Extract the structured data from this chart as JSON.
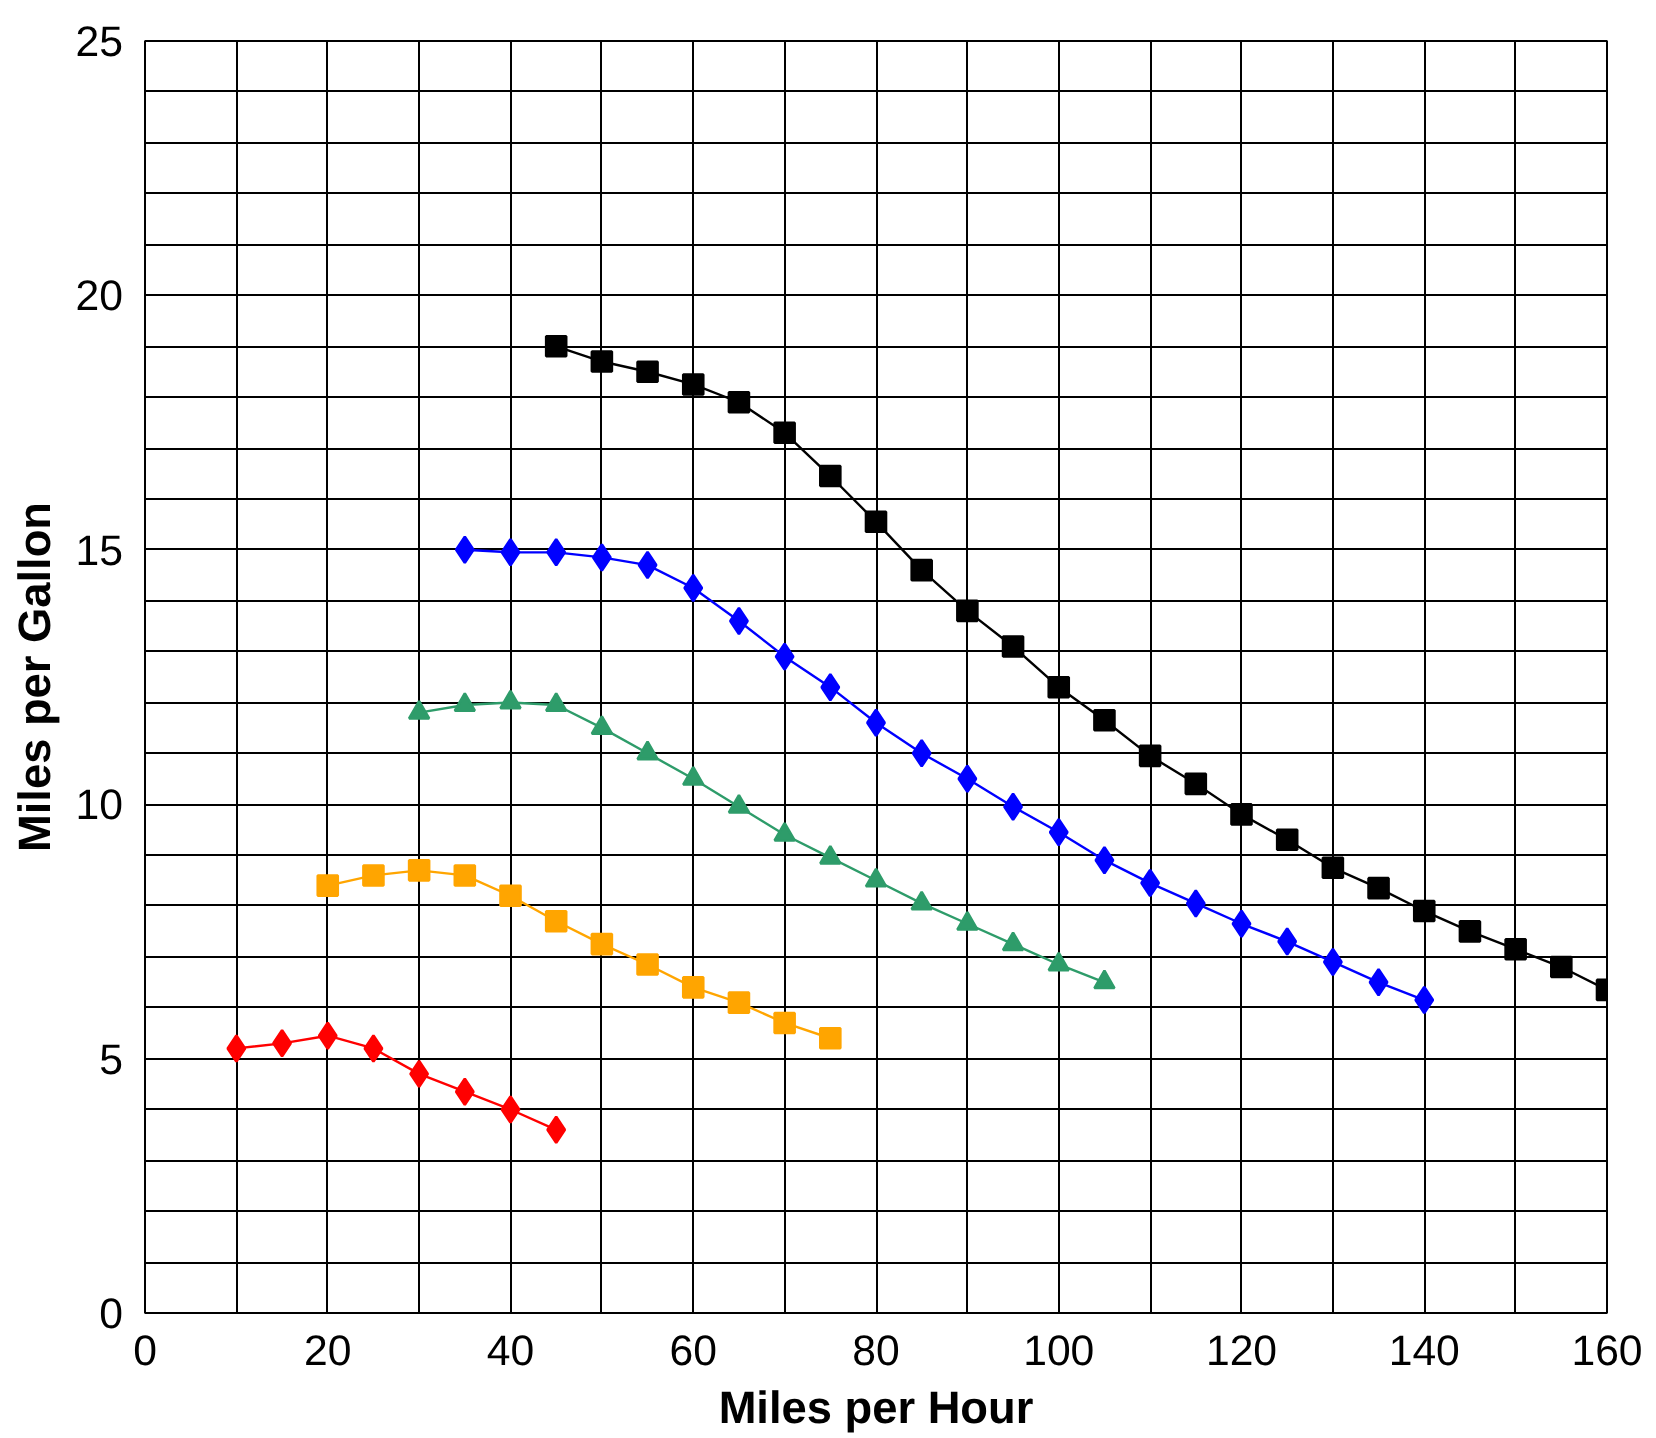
{
  "chart_data": {
    "type": "line",
    "xlabel": "Miles per Hour",
    "ylabel": "Miles per Gallon",
    "xlim": [
      0,
      160
    ],
    "ylim": [
      0,
      25
    ],
    "xticks": [
      0,
      {
        "value": 10,
        "label": null
      },
      20,
      {
        "value": 30,
        "label": null
      },
      40,
      {
        "value": 50,
        "label": null
      },
      60,
      {
        "value": 70,
        "label": null
      },
      80,
      {
        "value": 90,
        "label": null
      },
      100,
      {
        "value": 110,
        "label": null
      },
      120,
      {
        "value": 130,
        "label": null
      },
      140,
      {
        "value": 150,
        "label": null
      },
      160
    ],
    "yticks": [
      0,
      {
        "value": 1,
        "label": null
      },
      {
        "value": 2,
        "label": null
      },
      {
        "value": 3,
        "label": null
      },
      {
        "value": 4,
        "label": null
      },
      5,
      {
        "value": 6,
        "label": null
      },
      {
        "value": 7,
        "label": null
      },
      {
        "value": 8,
        "label": null
      },
      {
        "value": 9,
        "label": null
      },
      10,
      {
        "value": 11,
        "label": null
      },
      {
        "value": 12,
        "label": null
      },
      {
        "value": 13,
        "label": null
      },
      {
        "value": 14,
        "label": null
      },
      15,
      {
        "value": 16,
        "label": null
      },
      {
        "value": 17,
        "label": null
      },
      {
        "value": 18,
        "label": null
      },
      {
        "value": 19,
        "label": null
      },
      20,
      {
        "value": 21,
        "label": null
      },
      {
        "value": 22,
        "label": null
      },
      {
        "value": 23,
        "label": null
      },
      {
        "value": 24,
        "label": null
      },
      25
    ],
    "grid": true,
    "line_style": "solid",
    "series": [
      {
        "color": "#ff0000",
        "marker": "diamond",
        "x": [
          10,
          15,
          20,
          25,
          30,
          35,
          40,
          45
        ],
        "values": [
          5.2,
          5.3,
          5.45,
          5.2,
          4.7,
          4.35,
          4.0,
          3.6
        ]
      },
      {
        "color": "#ffa500",
        "marker": "square",
        "x": [
          20,
          25,
          30,
          35,
          40,
          45,
          50,
          55,
          60,
          65,
          70,
          75
        ],
        "values": [
          8.4,
          8.6,
          8.7,
          8.6,
          8.2,
          7.7,
          7.25,
          6.85,
          6.4,
          6.1,
          5.7,
          5.4
        ]
      },
      {
        "color": "#2e9c6a",
        "marker": "triangle",
        "x": [
          30,
          35,
          40,
          45,
          50,
          55,
          60,
          65,
          70,
          75,
          80,
          85,
          90,
          95,
          100,
          105
        ],
        "values": [
          11.8,
          11.95,
          12.0,
          11.95,
          11.5,
          11.0,
          10.5,
          9.95,
          9.4,
          8.95,
          8.5,
          8.05,
          7.65,
          7.25,
          6.85,
          6.5
        ]
      },
      {
        "color": "#0000ff",
        "marker": "diamond",
        "x": [
          35,
          40,
          45,
          50,
          55,
          60,
          65,
          70,
          75,
          80,
          85,
          90,
          95,
          100,
          105,
          110,
          115,
          120,
          125,
          130,
          135,
          140
        ],
        "values": [
          15.0,
          14.95,
          14.95,
          14.85,
          14.7,
          14.25,
          13.6,
          12.9,
          12.3,
          11.6,
          11.0,
          10.5,
          9.95,
          9.45,
          8.9,
          8.45,
          8.05,
          7.65,
          7.3,
          6.9,
          6.5,
          6.15
        ]
      },
      {
        "color": "#000000",
        "marker": "square",
        "x": [
          45,
          50,
          55,
          60,
          65,
          70,
          75,
          80,
          85,
          90,
          95,
          100,
          105,
          110,
          115,
          120,
          125,
          130,
          135,
          140,
          145,
          150,
          155,
          160
        ],
        "values": [
          19.0,
          18.7,
          18.5,
          18.25,
          17.9,
          17.3,
          16.45,
          15.55,
          14.6,
          13.8,
          13.1,
          12.3,
          11.65,
          10.95,
          10.4,
          9.8,
          9.3,
          8.75,
          8.35,
          7.9,
          7.5,
          7.15,
          6.8,
          6.35
        ]
      }
    ]
  }
}
